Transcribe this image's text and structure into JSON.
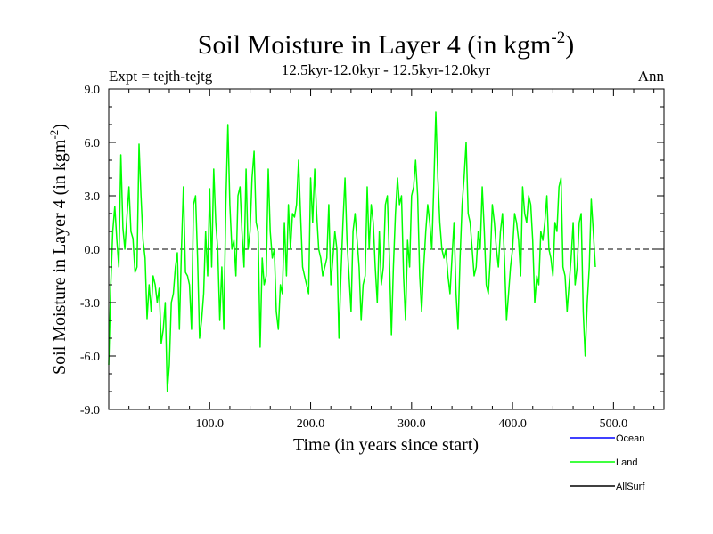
{
  "chart_data": {
    "type": "line",
    "title": "Soil Moisture in Layer 4 (in kgm",
    "title_superscript": "-2",
    "title_close": ")",
    "subtitle": "12.5kyr-12.0kyr - 12.5kyr-12.0kyr",
    "left_label": "Expt = tejth-tejtg",
    "right_label": "Ann",
    "xlabel": "Time (in years since start)",
    "ylabel": "Soil Moisture in Layer 4 (in kgm",
    "ylabel_superscript": "-2",
    "ylabel_close": ")",
    "xlim": [
      0,
      550
    ],
    "ylim": [
      -9,
      9
    ],
    "x_ticks": [
      100,
      200,
      300,
      400,
      500
    ],
    "x_tick_labels": [
      "100.0",
      "200.0",
      "300.0",
      "400.0",
      "500.0"
    ],
    "y_ticks": [
      -9,
      -6,
      -3,
      0,
      3,
      6,
      9
    ],
    "y_tick_labels": [
      "-9.0",
      "-6.0",
      "-3.0",
      "0.0",
      "3.0",
      "6.0",
      "9.0"
    ],
    "zero_line": {
      "y": 0,
      "style": "dashed",
      "color": "#000000"
    },
    "legend": [
      {
        "name": "Ocean",
        "color": "#0000ff"
      },
      {
        "name": "Land",
        "color": "#00ff00"
      },
      {
        "name": "AllSurf",
        "color": "#000000"
      }
    ],
    "series": [
      {
        "name": "Land",
        "color": "#00ff00",
        "x_start": 0,
        "x_step": 2,
        "values": [
          -6.5,
          -2.0,
          1.0,
          2.4,
          0.5,
          -1.0,
          5.3,
          1.2,
          0.0,
          1.8,
          3.5,
          1.0,
          0.6,
          -1.3,
          -1.0,
          5.9,
          3.0,
          0.5,
          -0.5,
          -3.9,
          -2.0,
          -3.5,
          -1.5,
          -2.0,
          -3.0,
          -2.2,
          -5.3,
          -4.5,
          -3.0,
          -8.0,
          -6.5,
          -3.0,
          -2.5,
          -1.0,
          -0.2,
          -4.5,
          0.0,
          3.5,
          -1.3,
          -1.5,
          -2.0,
          -4.5,
          2.5,
          3.0,
          -0.5,
          -5.0,
          -4.0,
          -2.5,
          1.0,
          -1.5,
          3.4,
          -1.0,
          4.5,
          1.5,
          0.0,
          -4.0,
          -1.0,
          -4.5,
          2.5,
          7.0,
          2.5,
          0.0,
          0.5,
          -1.5,
          3.0,
          3.5,
          1.0,
          -1.0,
          4.5,
          0.0,
          1.0,
          4.0,
          5.5,
          1.5,
          1.0,
          -5.5,
          -0.5,
          -2.0,
          -1.5,
          4.5,
          1.0,
          -0.5,
          0.0,
          -3.5,
          -4.5,
          -2.0,
          -2.5,
          1.5,
          -1.5,
          2.5,
          0.0,
          2.0,
          1.8,
          2.5,
          5.0,
          2.0,
          -1.0,
          -1.5,
          -2.0,
          -2.5,
          4.0,
          1.5,
          4.5,
          2.0,
          0.0,
          -0.5,
          -1.5,
          -1.0,
          -0.5,
          2.5,
          -2.0,
          -0.5,
          1.0,
          0.0,
          -5.0,
          -1.5,
          1.5,
          4.0,
          0.5,
          -1.5,
          -3.5,
          1.0,
          2.0,
          0.5,
          -1.0,
          -4.0,
          -2.0,
          -1.5,
          3.5,
          0.0,
          2.5,
          1.5,
          -1.0,
          -3.0,
          1.0,
          -2.0,
          -1.0,
          2.5,
          3.0,
          -0.5,
          -4.8,
          -1.0,
          2.0,
          4.0,
          2.5,
          3.0,
          -1.5,
          -4.0,
          0.5,
          -1.0,
          3.0,
          3.5,
          5.0,
          3.0,
          -1.5,
          -3.5,
          -1.0,
          1.0,
          2.5,
          1.5,
          0.0,
          3.5,
          7.7,
          4.0,
          1.5,
          0.0,
          -0.5,
          0.0,
          -1.5,
          -2.5,
          -0.5,
          1.5,
          -2.5,
          -4.5,
          -0.5,
          2.5,
          4.0,
          6.0,
          2.0,
          1.5,
          0.0,
          -1.5,
          -1.0,
          1.0,
          0.0,
          3.5,
          1.0,
          -2.0,
          -2.5,
          -0.5,
          2.5,
          1.5,
          0.0,
          -1.0,
          1.0,
          2.0,
          -0.5,
          -4.0,
          -2.5,
          -1.0,
          0.0,
          2.0,
          1.5,
          0.5,
          -1.5,
          3.5,
          2.0,
          1.5,
          3.0,
          2.5,
          0.5,
          -3.0,
          -1.5,
          -2.0,
          1.0,
          0.5,
          1.5,
          3.0,
          0.0,
          -0.5,
          -1.5,
          1.5,
          1.0,
          3.5,
          4.0,
          -1.0,
          -1.5,
          -3.5,
          -2.0,
          -0.5,
          1.5,
          -2.0,
          -1.0,
          1.5,
          2.0,
          -3.5,
          -6.0,
          -3.0,
          -1.0,
          2.8,
          1.0,
          -1.0
        ]
      }
    ]
  }
}
